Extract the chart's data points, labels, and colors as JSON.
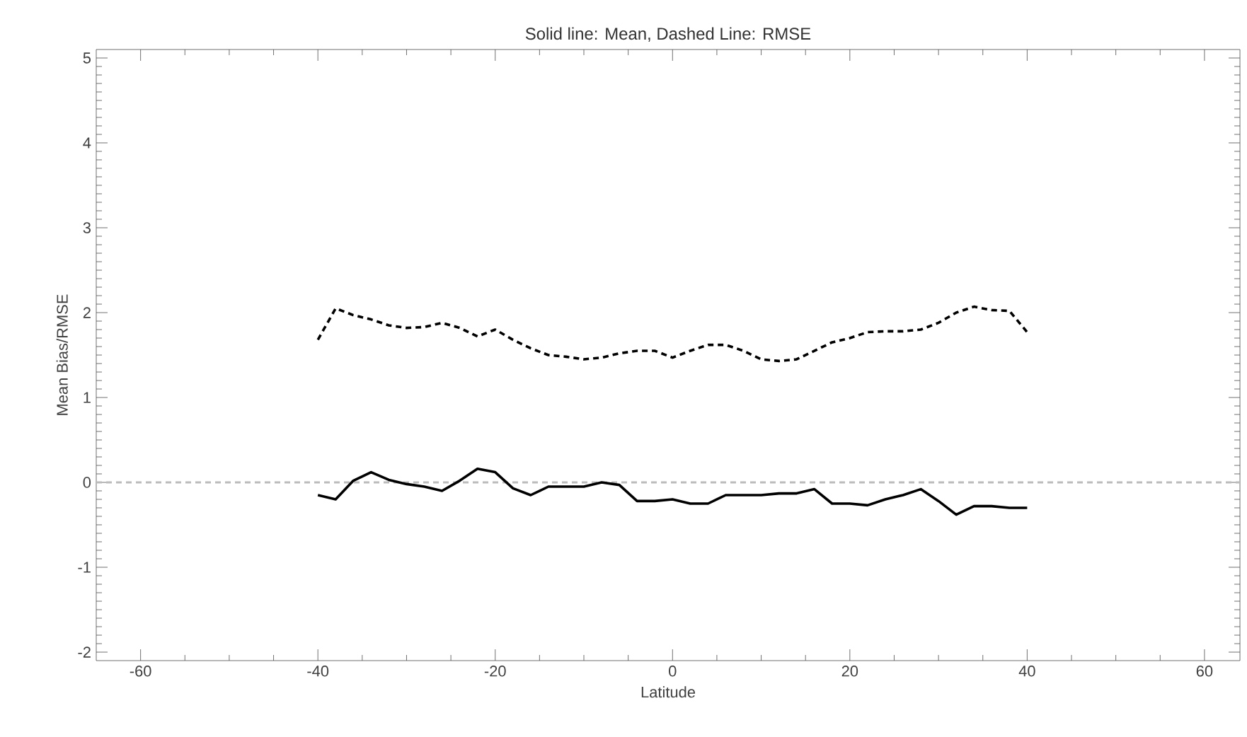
{
  "chart_data": {
    "type": "line",
    "title": "Solid line: Mean, Dashed Line: RMSE",
    "xlabel": "Latitude",
    "ylabel": "Mean Bias/RMSE",
    "x": [
      -40,
      -38,
      -36,
      -34,
      -32,
      -30,
      -28,
      -26,
      -24,
      -22,
      -20,
      -18,
      -16,
      -14,
      -12,
      -10,
      -8,
      -6,
      -4,
      -2,
      0,
      2,
      4,
      6,
      8,
      10,
      12,
      14,
      16,
      18,
      20,
      22,
      24,
      26,
      28,
      30,
      32,
      34,
      36,
      38,
      40
    ],
    "series": [
      {
        "color": "#000000",
        "line_style": "solid",
        "values": [
          -0.15,
          -0.2,
          0.02,
          0.12,
          0.03,
          -0.02,
          -0.05,
          -0.1,
          0.02,
          0.16,
          0.12,
          -0.07,
          -0.15,
          -0.05,
          -0.05,
          -0.05,
          0.0,
          -0.03,
          -0.22,
          -0.22,
          -0.2,
          -0.25,
          -0.25,
          -0.15,
          -0.15,
          -0.15,
          -0.13,
          -0.13,
          -0.08,
          -0.25,
          -0.25,
          -0.27,
          -0.2,
          -0.15,
          -0.08,
          -0.22,
          -0.38,
          -0.28,
          -0.28,
          -0.3,
          -0.3
        ]
      },
      {
        "color": "#000000",
        "line_style": "dashed",
        "values": [
          1.68,
          2.05,
          1.97,
          1.92,
          1.85,
          1.82,
          1.83,
          1.88,
          1.82,
          1.72,
          1.8,
          1.68,
          1.58,
          1.5,
          1.48,
          1.45,
          1.47,
          1.52,
          1.55,
          1.55,
          1.47,
          1.55,
          1.62,
          1.62,
          1.55,
          1.45,
          1.43,
          1.45,
          1.55,
          1.65,
          1.7,
          1.77,
          1.78,
          1.78,
          1.8,
          1.88,
          2.0,
          2.07,
          2.03,
          2.02,
          1.77
        ]
      }
    ],
    "xlim": [
      -65,
      64
    ],
    "ylim": [
      -2.1,
      5.1
    ],
    "xticks": [
      -60,
      -40,
      -20,
      0,
      20,
      40,
      60
    ],
    "yticks": [
      -2,
      -1,
      0,
      1,
      2,
      3,
      4,
      5
    ],
    "ref_lines": [
      {
        "axis": "y",
        "value": 0,
        "color": "#bbbbbb",
        "line_style": "dashed"
      }
    ]
  }
}
